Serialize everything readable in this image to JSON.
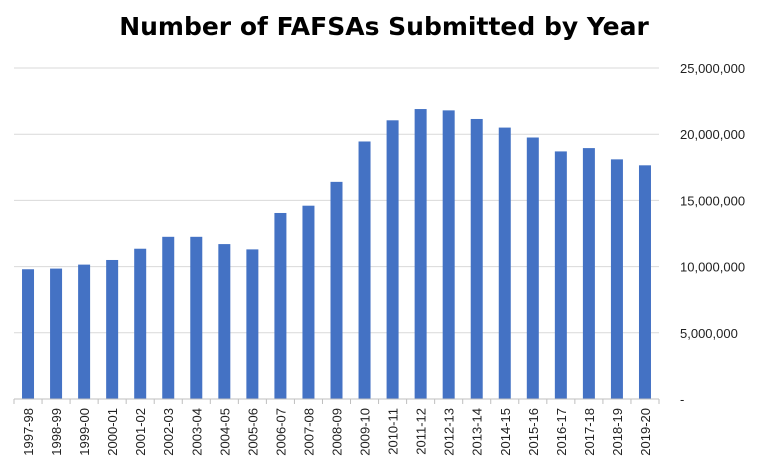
{
  "chart_data": {
    "type": "bar",
    "title": "Number of FAFSAs Submitted by Year",
    "xlabel": "",
    "ylabel": "",
    "categories": [
      "1997-98",
      "1998-99",
      "1999-00",
      "2000-01",
      "2001-02",
      "2002-03",
      "2003-04",
      "2004-05",
      "2005-06",
      "2006-07",
      "2007-08",
      "2008-09",
      "2009-10",
      "2010-11",
      "2011-12",
      "2012-13",
      "2013-14",
      "2014-15",
      "2015-16",
      "2016-17",
      "2017-18",
      "2018-19",
      "2019-20"
    ],
    "values": [
      9800000,
      9850000,
      10150000,
      10500000,
      11350000,
      12250000,
      12250000,
      11700000,
      11300000,
      14050000,
      14600000,
      16400000,
      19450000,
      21050000,
      21900000,
      21800000,
      21150000,
      20500000,
      19750000,
      18700000,
      18950000,
      18100000,
      17650000
    ],
    "ylim": [
      0,
      25000000
    ],
    "yticks": [
      {
        "value": 0,
        "label": "-"
      },
      {
        "value": 5000000,
        "label": "5,000,000"
      },
      {
        "value": 10000000,
        "label": "10,000,000"
      },
      {
        "value": 15000000,
        "label": "15,000,000"
      },
      {
        "value": 20000000,
        "label": "20,000,000"
      },
      {
        "value": 25000000,
        "label": "25,000,000"
      }
    ],
    "y_axis_side": "right",
    "grid": true,
    "legend": "none",
    "bar_color": "#4472c4",
    "grid_color": "#d9d9d9"
  }
}
